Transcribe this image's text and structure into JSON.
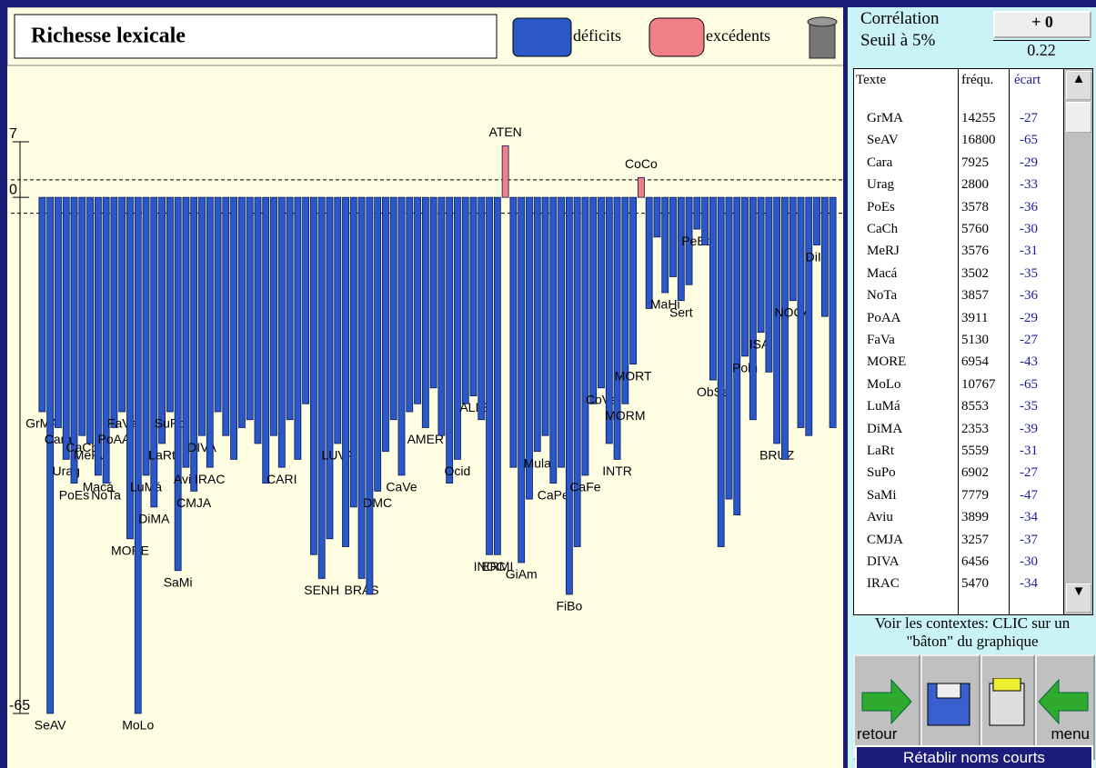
{
  "chart_data": {
    "type": "bar",
    "title": "Richesse lexicale",
    "series": [
      {
        "name": "déficits",
        "color": "#2b58c8"
      },
      {
        "name": "excédents",
        "color": "#f07f86"
      }
    ],
    "categories": [
      "GrMA",
      "SeAV",
      "Cara",
      "Urag",
      "PoEs",
      "CaCh",
      "MeRJ",
      "Macá",
      "NoTa",
      "PoAA",
      "FaVa",
      "MORE",
      "MoLo",
      "LuMá",
      "DiMA",
      "LaRt",
      "SuPo",
      "SaMi",
      "Aviu",
      "CMJA",
      "DIVA",
      "IRAC",
      null,
      null,
      null,
      null,
      null,
      null,
      null,
      null,
      "CARI",
      null,
      null,
      null,
      null,
      "SENH",
      null,
      "LUVA",
      null,
      null,
      "BRÁS",
      null,
      "DMC",
      null,
      null,
      "CaVe",
      null,
      null,
      "AMER",
      null,
      null,
      null,
      "Ocid",
      null,
      "ALIE",
      null,
      "INOC",
      "ERMI",
      "ATEN",
      null,
      "GiAm",
      null,
      "Mula",
      null,
      "CaPe",
      null,
      "FiBo",
      null,
      "CaFe",
      null,
      "CoVe",
      null,
      "INTR",
      "MORM",
      "MORT",
      "CoCo",
      null,
      null,
      "MaHi",
      null,
      "Sert",
      null,
      "PeBo",
      null,
      "ObSe",
      null,
      null,
      null,
      "Poln",
      null,
      "ISAl",
      null,
      "BRUZ",
      null,
      "NOCA",
      null,
      null,
      "DiIn",
      null,
      null
    ],
    "values": [
      -27,
      -65,
      -29,
      -33,
      -36,
      -30,
      -31,
      -35,
      -36,
      -29,
      -27,
      -43,
      -65,
      -35,
      -39,
      -31,
      -27,
      -47,
      -34,
      -37,
      -30,
      -34,
      -27,
      -30,
      -33,
      -29,
      -28,
      -31,
      -36,
      -30,
      -34,
      -28,
      -33,
      -26,
      -45,
      -48,
      -43,
      -31,
      -44,
      -39,
      -48,
      -50,
      -37,
      -32,
      -28,
      -35,
      -27,
      -26,
      -29,
      -24,
      -30,
      -36,
      -33,
      -26,
      -25,
      -28,
      -45,
      -45,
      6.5,
      -34,
      -46,
      -38,
      -32,
      -30,
      -36,
      -34,
      -50,
      -44,
      -35,
      -26,
      -24,
      -31,
      -33,
      -26,
      -21,
      2.5,
      -14,
      -5,
      -12,
      -10,
      -13,
      -11,
      -4,
      -6,
      -23,
      -44,
      -38,
      -40,
      -20,
      -28,
      -17,
      -22,
      -31,
      -33,
      -13,
      -29,
      -30,
      -6,
      -15,
      -29
    ],
    "ylim": [
      -71.3,
      15.7
    ],
    "yticks": [
      7,
      0,
      -65
    ],
    "threshold_lines": [
      2.2,
      -2
    ]
  },
  "panel": {
    "correlation_label": "Corrélation",
    "threshold_label": "Seuil à 5%",
    "correlation_value": "+ 0",
    "threshold_value": "0.22",
    "table": {
      "headers": [
        "Texte",
        "fréqu.",
        "écart"
      ],
      "rows": [
        [
          "GrMA",
          "14255",
          "-27"
        ],
        [
          "SeAV",
          "16800",
          "-65"
        ],
        [
          "Cara",
          "7925",
          "-29"
        ],
        [
          "Urag",
          "2800",
          "-33"
        ],
        [
          "PoEs",
          "3578",
          "-36"
        ],
        [
          "CaCh",
          "5760",
          "-30"
        ],
        [
          "MeRJ",
          "3576",
          "-31"
        ],
        [
          "Macá",
          "3502",
          "-35"
        ],
        [
          "NoTa",
          "3857",
          "-36"
        ],
        [
          "PoAA",
          "3911",
          "-29"
        ],
        [
          "FaVa",
          "5130",
          "-27"
        ],
        [
          "MORE",
          "6954",
          "-43"
        ],
        [
          "MoLo",
          "10767",
          "-65"
        ],
        [
          "LuMá",
          "8553",
          "-35"
        ],
        [
          "DiMA",
          "2353",
          "-39"
        ],
        [
          "LaRt",
          "5559",
          "-31"
        ],
        [
          "SuPo",
          "6902",
          "-27"
        ],
        [
          "SaMi",
          "7779",
          "-47"
        ],
        [
          "Aviu",
          "3899",
          "-34"
        ],
        [
          "CMJA",
          "3257",
          "-37"
        ],
        [
          "DIVA",
          "6456",
          "-30"
        ],
        [
          "IRAC",
          "5470",
          "-34"
        ]
      ]
    },
    "help": "Voir les contextes: CLIC sur un \"bâton\" du graphique",
    "buttons": {
      "back": "retour",
      "menu": "menu",
      "reset": "Rétablir noms courts"
    }
  }
}
